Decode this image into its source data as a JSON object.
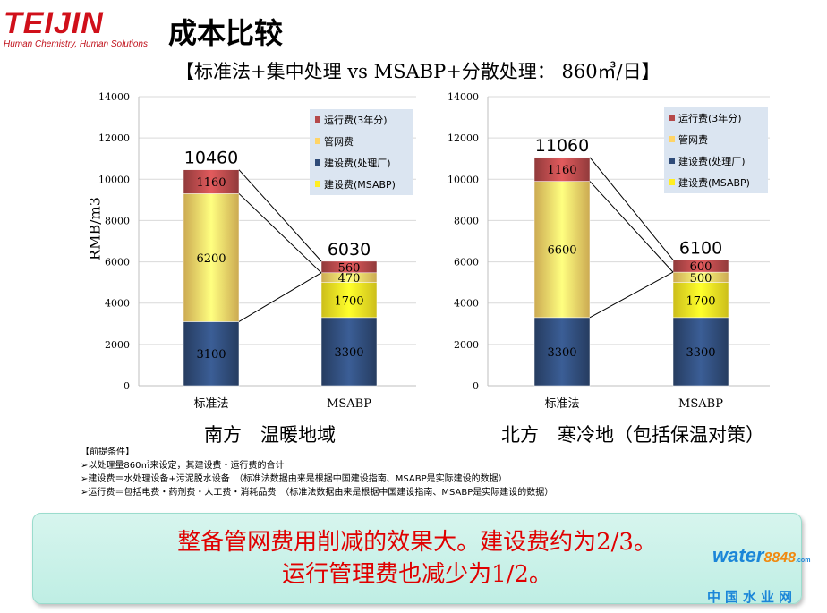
{
  "header": {
    "logo_text": "TEIJIN",
    "logo_tagline": "Human Chemistry, Human Solutions",
    "title": "成本比较",
    "subtitle": "【标准法+集中处理 vs MSABP+分散处理： 860㎥/日】"
  },
  "ylabel": "RMB/m3",
  "colors": {
    "operation": "#b5494a",
    "pipe_network": "#ffd466",
    "construction_plant": "#2f4b78",
    "construction_msabp": "#ffee22"
  },
  "legend": [
    {
      "key": "operation",
      "label": "运行费(3年分)"
    },
    {
      "key": "pipe_network",
      "label": "管网费"
    },
    {
      "key": "construction_plant",
      "label": "建设费(处理厂)"
    },
    {
      "key": "construction_msabp",
      "label": "建设费(MSABP)"
    }
  ],
  "chart_data": [
    {
      "type": "bar",
      "stacked": true,
      "caption": "南方　温暖地域",
      "categories": [
        "标准法",
        "MSABP"
      ],
      "ylim": [
        0,
        14000
      ],
      "yticks": [
        0,
        2000,
        4000,
        6000,
        8000,
        10000,
        12000,
        14000
      ],
      "grid": true,
      "legend_position": "top-right",
      "series": [
        {
          "name": "建设费(处理厂)",
          "key": "construction_plant",
          "values": [
            3100,
            3300
          ]
        },
        {
          "name": "建设费(MSABP)",
          "key": "construction_msabp",
          "values": [
            0,
            1700
          ]
        },
        {
          "name": "管网费",
          "key": "pipe_network",
          "values": [
            6200,
            470
          ]
        },
        {
          "name": "运行费(3年分)",
          "key": "operation",
          "values": [
            1160,
            560
          ]
        }
      ],
      "totals": [
        10460,
        6030
      ]
    },
    {
      "type": "bar",
      "stacked": true,
      "caption": "北方　寒冷地（包括保温对策）",
      "categories": [
        "标准法",
        "MSABP"
      ],
      "ylim": [
        0,
        14000
      ],
      "yticks": [
        0,
        2000,
        4000,
        6000,
        8000,
        10000,
        12000,
        14000
      ],
      "grid": true,
      "legend_position": "top-right",
      "series": [
        {
          "name": "建设费(处理厂)",
          "key": "construction_plant",
          "values": [
            3300,
            3300
          ]
        },
        {
          "name": "建设费(MSABP)",
          "key": "construction_msabp",
          "values": [
            0,
            1700
          ]
        },
        {
          "name": "管网费",
          "key": "pipe_network",
          "values": [
            6600,
            500
          ]
        },
        {
          "name": "运行费(3年分)",
          "key": "operation",
          "values": [
            1160,
            600
          ]
        }
      ],
      "totals": [
        11060,
        6100
      ]
    }
  ],
  "premise": {
    "heading": "【前提条件】",
    "lines": [
      "➢以处理量860㎥来设定，其建设费・运行费的合计",
      "➢建设费＝水处理设备+污泥脱水设备　（标准法数据由来是根据中国建设指南、MSABP是实际建设的数据）",
      "➢运行费＝包括电费・药剂费・人工费・消耗品费　（标准法数据由来是根据中国建设指南、MSABP是实际建设的数据）"
    ]
  },
  "conclusion": {
    "line1": "整备管网费用削减的效果大。建设费约为2/3。",
    "line2": "运行管理费也减少为1/2。"
  },
  "watermark": {
    "brand": "water",
    "number": "8848",
    "domain": ".com",
    "chinese": "中国水业网"
  }
}
